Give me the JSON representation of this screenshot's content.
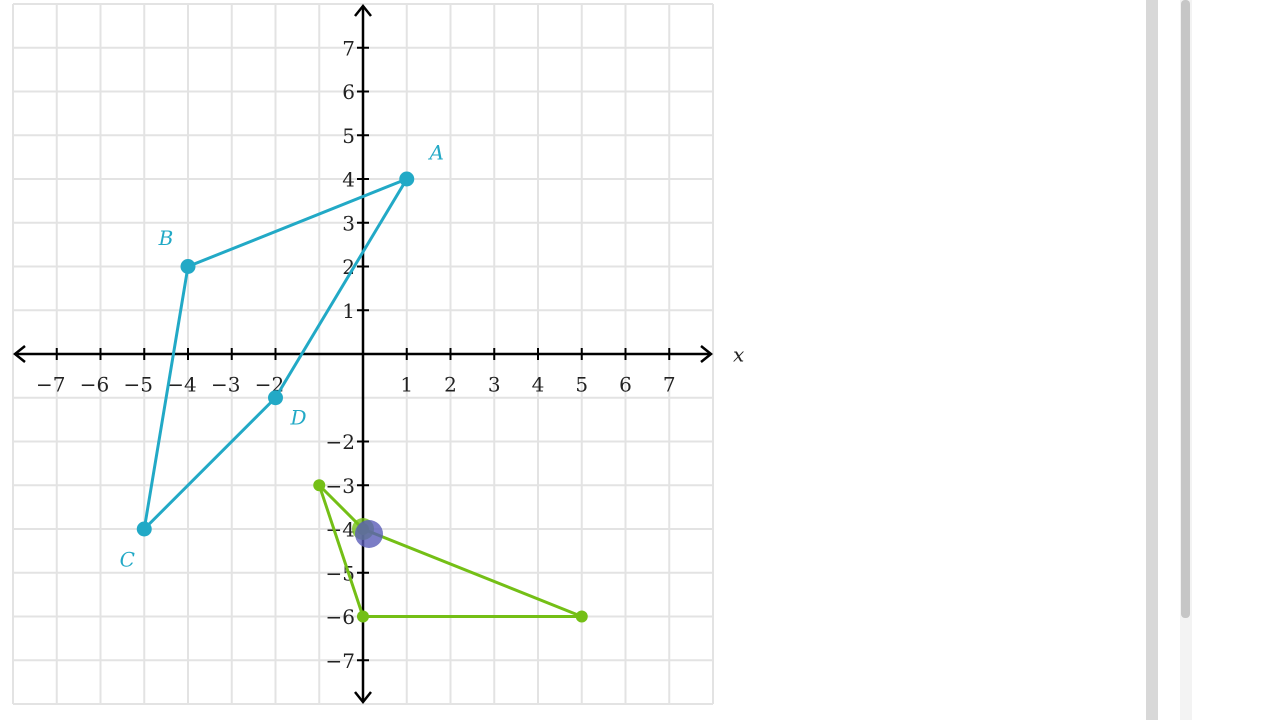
{
  "chart_data": {
    "type": "polygon",
    "x_label": "x",
    "xlim": [
      -8,
      8
    ],
    "ylim": [
      -8,
      8
    ],
    "grid": true,
    "grid_step": 1,
    "xticks": [
      {
        "value": -7,
        "label": "−7"
      },
      {
        "value": -6,
        "label": "−6"
      },
      {
        "value": -5,
        "label": "−5"
      },
      {
        "value": -4,
        "label": "−4"
      },
      {
        "value": -3,
        "label": "−3"
      },
      {
        "value": -2,
        "label": "−2"
      },
      1,
      2,
      3,
      4,
      5,
      6,
      7
    ],
    "yticks": [
      1,
      2,
      3,
      4,
      5,
      6,
      7,
      {
        "value": -2,
        "label": "−2"
      },
      {
        "value": -3,
        "label": "−3"
      },
      {
        "value": -4,
        "label": "−4"
      },
      {
        "value": -5,
        "label": "−5"
      },
      {
        "value": -6,
        "label": "−6"
      },
      {
        "value": -7,
        "label": "−7"
      }
    ],
    "series": [
      {
        "color": "#22a9c6",
        "x": [
          1,
          -4,
          -5,
          -2
        ],
        "y": [
          4,
          2,
          -4,
          -1
        ],
        "labels": [
          "A",
          "B",
          "C",
          "D"
        ]
      },
      {
        "color": "#74bf16",
        "x": [
          -1,
          0,
          5,
          0
        ],
        "y": [
          -3,
          -4,
          -6,
          -6
        ]
      }
    ]
  }
}
